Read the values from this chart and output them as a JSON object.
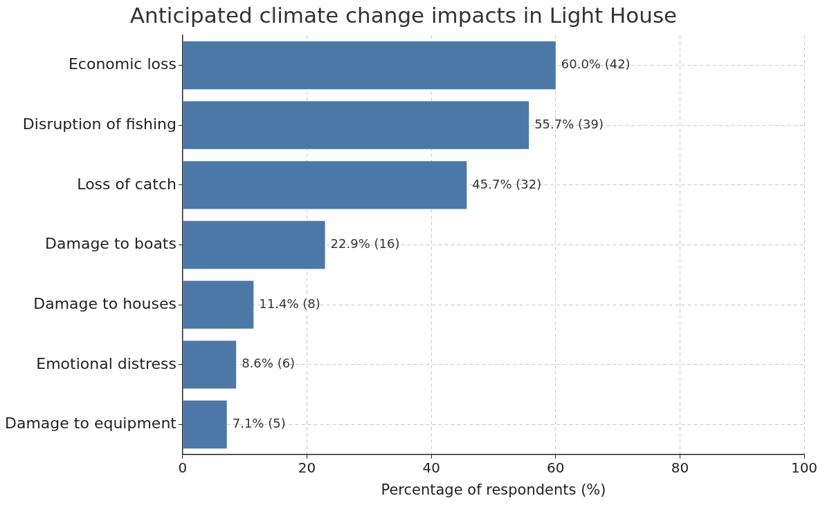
{
  "chart_data": {
    "type": "bar",
    "orientation": "horizontal",
    "title": "Anticipated climate change impacts in Light House",
    "xlabel": "Percentage of respondents (%)",
    "categories": [
      "Economic loss",
      "Disruption of fishing",
      "Loss of catch",
      "Damage to boats",
      "Damage to houses",
      "Emotional distress",
      "Damage to equipment"
    ],
    "values": [
      60.0,
      55.7,
      45.7,
      22.9,
      11.4,
      8.6,
      7.1
    ],
    "value_labels": [
      "60.0% (42)",
      "55.7% (39)",
      "45.7% (32)",
      "22.9% (16)",
      "11.4% (8)",
      "8.6% (6)",
      "7.1% (5)"
    ],
    "color": "#4c78a8",
    "xlim": [
      0,
      100
    ],
    "xticks": [
      0,
      20,
      40,
      60,
      80,
      100
    ],
    "grid": true,
    "legend": false
  }
}
